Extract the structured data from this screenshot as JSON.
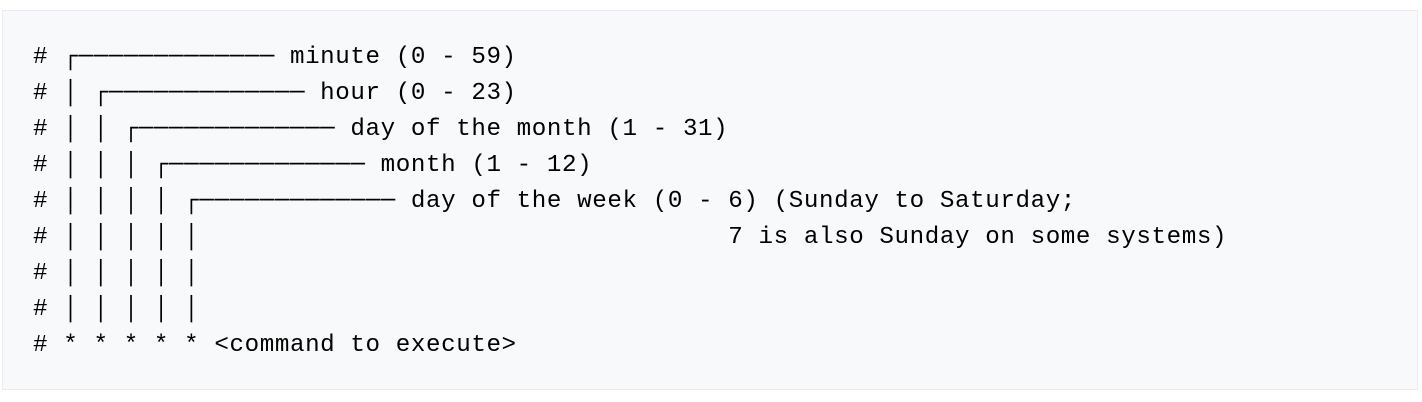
{
  "code_block": {
    "lines": [
      "# ┌───────────── minute (0 - 59)",
      "# │ ┌───────────── hour (0 - 23)",
      "# │ │ ┌───────────── day of the month (1 - 31)",
      "# │ │ │ ┌───────────── month (1 - 12)",
      "# │ │ │ │ ┌───────────── day of the week (0 - 6) (Sunday to Saturday;",
      "# │ │ │ │ │                                   7 is also Sunday on some systems)",
      "# │ │ │ │ │",
      "# │ │ │ │ │",
      "# * * * * * <command to execute>"
    ]
  }
}
